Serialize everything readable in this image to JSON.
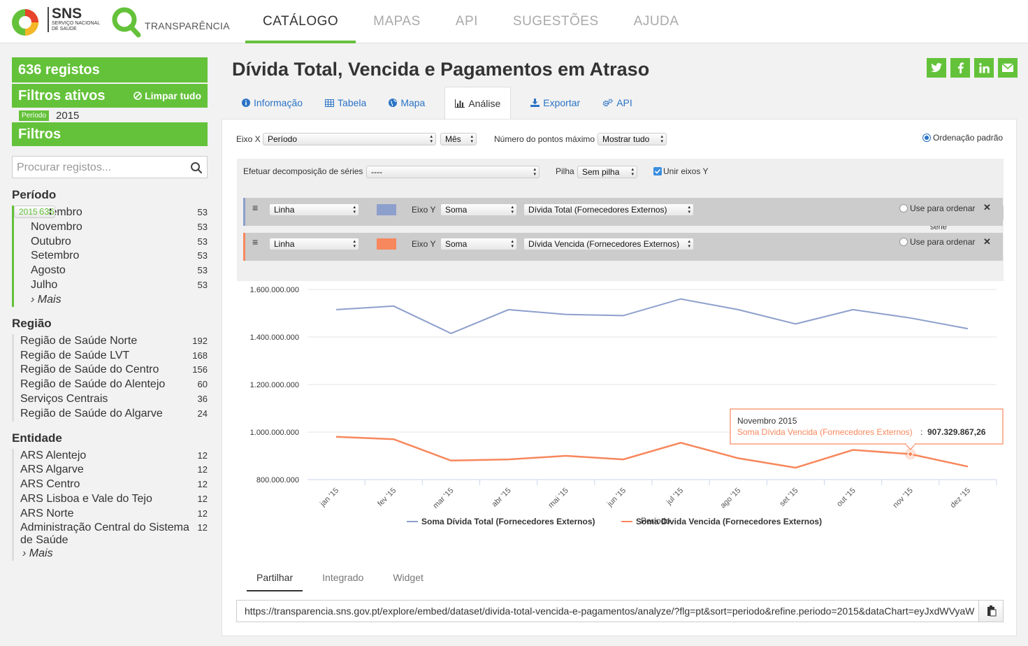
{
  "header": {
    "sns_big": "SNS",
    "sns_small1": "Serviço Nacional",
    "sns_small2": "de Saúde",
    "transparencia": "TRANSPARÊNCIA",
    "nav": [
      "CATÁLOGO",
      "MAPAS",
      "API",
      "SUGESTÕES",
      "AJUDA"
    ],
    "active_nav": "CATÁLOGO"
  },
  "sidebar": {
    "count": "636 registos",
    "filtros_ativos": "Filtros ativos",
    "limpar": "Limpar tudo",
    "active_filter_tag": "Período",
    "active_filter_value": "2015",
    "filtros": "Filtros",
    "search_placeholder": "Procurar registos...",
    "periodo": {
      "title": "Período",
      "selected": {
        "label": "2015",
        "count": "636"
      },
      "items": [
        {
          "label": "Dezembro",
          "count": "53"
        },
        {
          "label": "Novembro",
          "count": "53"
        },
        {
          "label": "Outubro",
          "count": "53"
        },
        {
          "label": "Setembro",
          "count": "53"
        },
        {
          "label": "Agosto",
          "count": "53"
        },
        {
          "label": "Julho",
          "count": "53"
        }
      ],
      "mais": "Mais"
    },
    "regiao": {
      "title": "Região",
      "items": [
        {
          "label": "Região de Saúde Norte",
          "count": "192"
        },
        {
          "label": "Região de Saúde LVT",
          "count": "168"
        },
        {
          "label": "Região de Saúde do Centro",
          "count": "156"
        },
        {
          "label": "Região de Saúde do Alentejo",
          "count": "60"
        },
        {
          "label": "Serviços Centrais",
          "count": "36"
        },
        {
          "label": "Região de Saúde do Algarve",
          "count": "24"
        }
      ]
    },
    "entidade": {
      "title": "Entidade",
      "items": [
        {
          "label": "ARS Alentejo",
          "count": "12"
        },
        {
          "label": "ARS Algarve",
          "count": "12"
        },
        {
          "label": "ARS Centro",
          "count": "12"
        },
        {
          "label": "ARS Lisboa e Vale do Tejo",
          "count": "12"
        },
        {
          "label": "ARS Norte",
          "count": "12"
        },
        {
          "label": "Administração Central do Sistema de Saúde",
          "count": "12"
        }
      ],
      "mais": "Mais"
    }
  },
  "main": {
    "title": "Dívida Total, Vencida e Pagamentos em Atraso",
    "tabs": [
      "Informação",
      "Tabela",
      "Mapa",
      "Análise",
      "Exportar",
      "API"
    ],
    "active_tab": "Análise",
    "controls": {
      "eixo_x_label": "Eixo X",
      "eixo_x_value": "Período",
      "eixo_x_unit": "Mês",
      "max_points_label": "Número do pontos máximo",
      "max_points_value": "Mostrar tudo",
      "ordenacao": "Ordenação padrão",
      "decomp_label": "Efetuar decomposição de séries",
      "decomp_value": "----",
      "pilha_label": "Pilha",
      "pilha_value": "Sem pilha",
      "unir_label": "Unir eixos Y",
      "add_series": "Adicionar uma série"
    },
    "series": [
      {
        "type": "Linha",
        "eixo_y_label": "Eixo Y",
        "agg": "Soma",
        "field": "Dívida Total (Fornecedores Externos)",
        "use_order": "Use para ordenar",
        "color": "#8d9fcc",
        "accent": "#8d9fcc"
      },
      {
        "type": "Linha",
        "eixo_y_label": "Eixo Y",
        "agg": "Soma",
        "field": "Dívida Vencida (Fornecedores Externos)",
        "use_order": "Use para ordenar",
        "color": "#f7875c",
        "accent": "#f7875c"
      }
    ],
    "bottom_tabs": [
      "Partilhar",
      "Integrado",
      "Widget"
    ],
    "active_bottom_tab": "Partilhar",
    "embed_url": "https://transparencia.sns.gov.pt/explore/embed/dataset/divida-total-vencida-e-pagamentos/analyze/?flg=pt&sort=periodo&refine.periodo=2015&dataChart=eyJxdWVyaW"
  },
  "chart_data": {
    "type": "line",
    "categories": [
      "jan '15",
      "fev '15",
      "mar '15",
      "abr '15",
      "mai '15",
      "jun '15",
      "jul '15",
      "ago '15",
      "set '15",
      "out '15",
      "nov '15",
      "dez '15"
    ],
    "xlabel": "Período",
    "ylim": [
      800000000,
      1600000000
    ],
    "yticks": [
      "800.000.000",
      "1.000.000.000",
      "1.200.000.000",
      "1.400.000.000",
      "1.600.000.000"
    ],
    "ytick_values": [
      800000000,
      1000000000,
      1200000000,
      1400000000,
      1600000000
    ],
    "series": [
      {
        "name": "Soma Dívida Total (Fornecedores Externos)",
        "color": "#8d9fcc",
        "values": [
          1515000000,
          1530000000,
          1415000000,
          1515000000,
          1495000000,
          1490000000,
          1560000000,
          1515000000,
          1455000000,
          1515000000,
          1480000000,
          1435000000
        ]
      },
      {
        "name": "Soma Dívida Vencida (Fornecedores Externos)",
        "color": "#f7875c",
        "values": [
          980000000,
          970000000,
          880000000,
          885000000,
          900000000,
          885000000,
          955000000,
          890000000,
          850000000,
          925000000,
          907329867.26,
          855000000
        ]
      }
    ],
    "legend": "bottom",
    "tooltip": {
      "title": "Novembro 2015",
      "series": "Soma Dívida Vencida (Fornecedores Externos)",
      "value": "907.329.867,26",
      "index": 10
    }
  }
}
